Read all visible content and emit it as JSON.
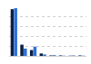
{
  "chart_data": {
    "type": "bar",
    "categories": [
      null,
      null,
      null,
      null,
      null,
      null,
      null,
      null
    ],
    "series": [
      {
        "color": "#0b1f3f",
        "values": [
          96,
          23,
          12,
          5,
          1,
          1,
          0.5,
          1
        ]
      },
      {
        "color": "#2f6fd6",
        "values": [
          98,
          15,
          19,
          3,
          1.5,
          0.5,
          1,
          0.5
        ]
      }
    ],
    "ylim": [
      0,
      100
    ],
    "yticks": [
      0,
      20,
      40,
      60,
      80,
      100
    ],
    "grid": true,
    "tick_labels": false
  }
}
